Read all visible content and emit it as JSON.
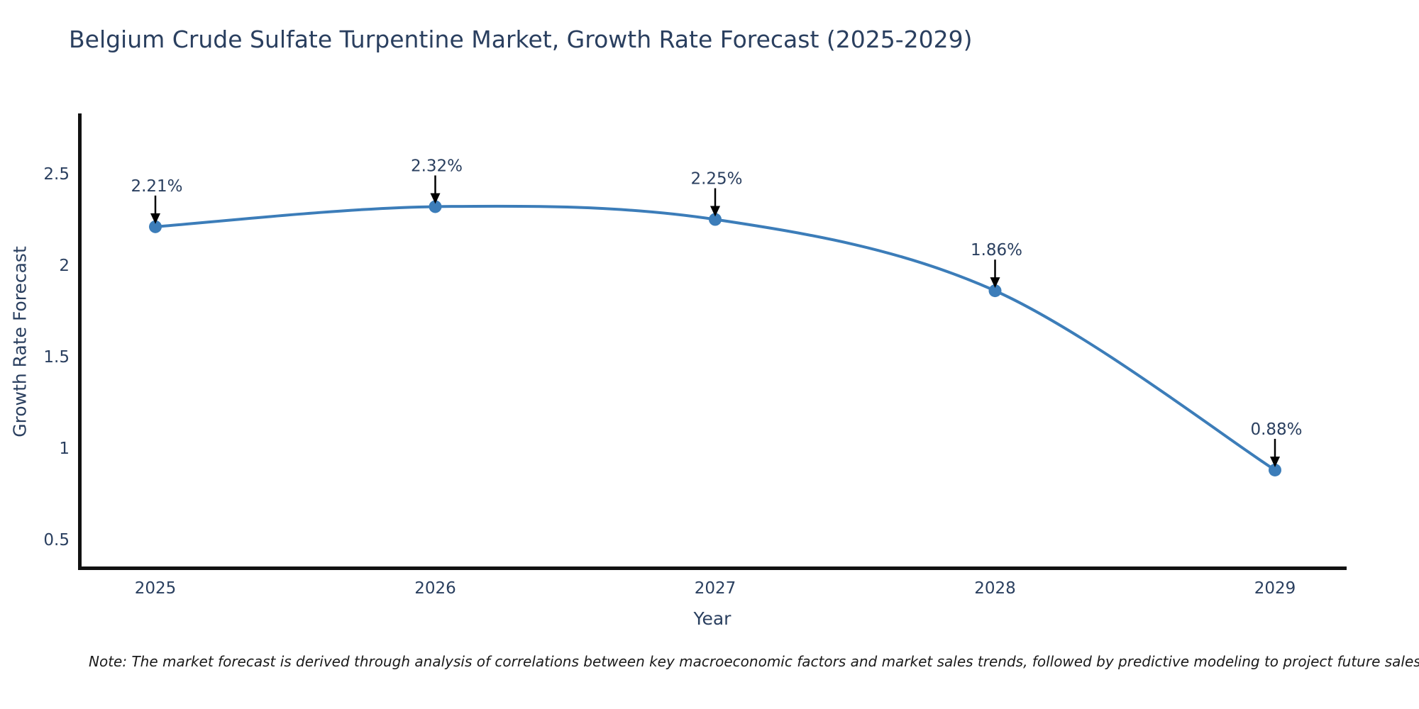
{
  "title": "Belgium Crude Sulfate Turpentine Market, Growth Rate Forecast (2025-2029)",
  "note": "Note: The market forecast is derived through analysis of correlations between key macroeconomic factors and market sales trends, followed by predictive modeling to project future sales",
  "chart_data": {
    "type": "line",
    "title": "Belgium Crude Sulfate Turpentine Market, Growth Rate Forecast (2025-2029)",
    "x": [
      "2025",
      "2026",
      "2027",
      "2028",
      "2029"
    ],
    "series": [
      {
        "name": "Growth Rate Forecast",
        "values": [
          2.21,
          2.32,
          2.25,
          1.86,
          0.88
        ]
      }
    ],
    "point_labels": [
      "2.21%",
      "2.32%",
      "2.25%",
      "1.86%",
      "0.88%"
    ],
    "xlabel": "Year",
    "ylabel": "Growth Rate Forecast",
    "yticks": [
      0.5,
      1,
      1.5,
      2,
      2.5
    ],
    "ylim": [
      0.36,
      2.84
    ],
    "line_shape": "spline",
    "grid": false,
    "legend": "none",
    "colors": {
      "line": "#3c7db9",
      "marker": "#3c7db9",
      "arrow": "#000000",
      "spine": "#111111",
      "text": "#2a3f5f",
      "note_text": "#1a1a1a"
    }
  }
}
